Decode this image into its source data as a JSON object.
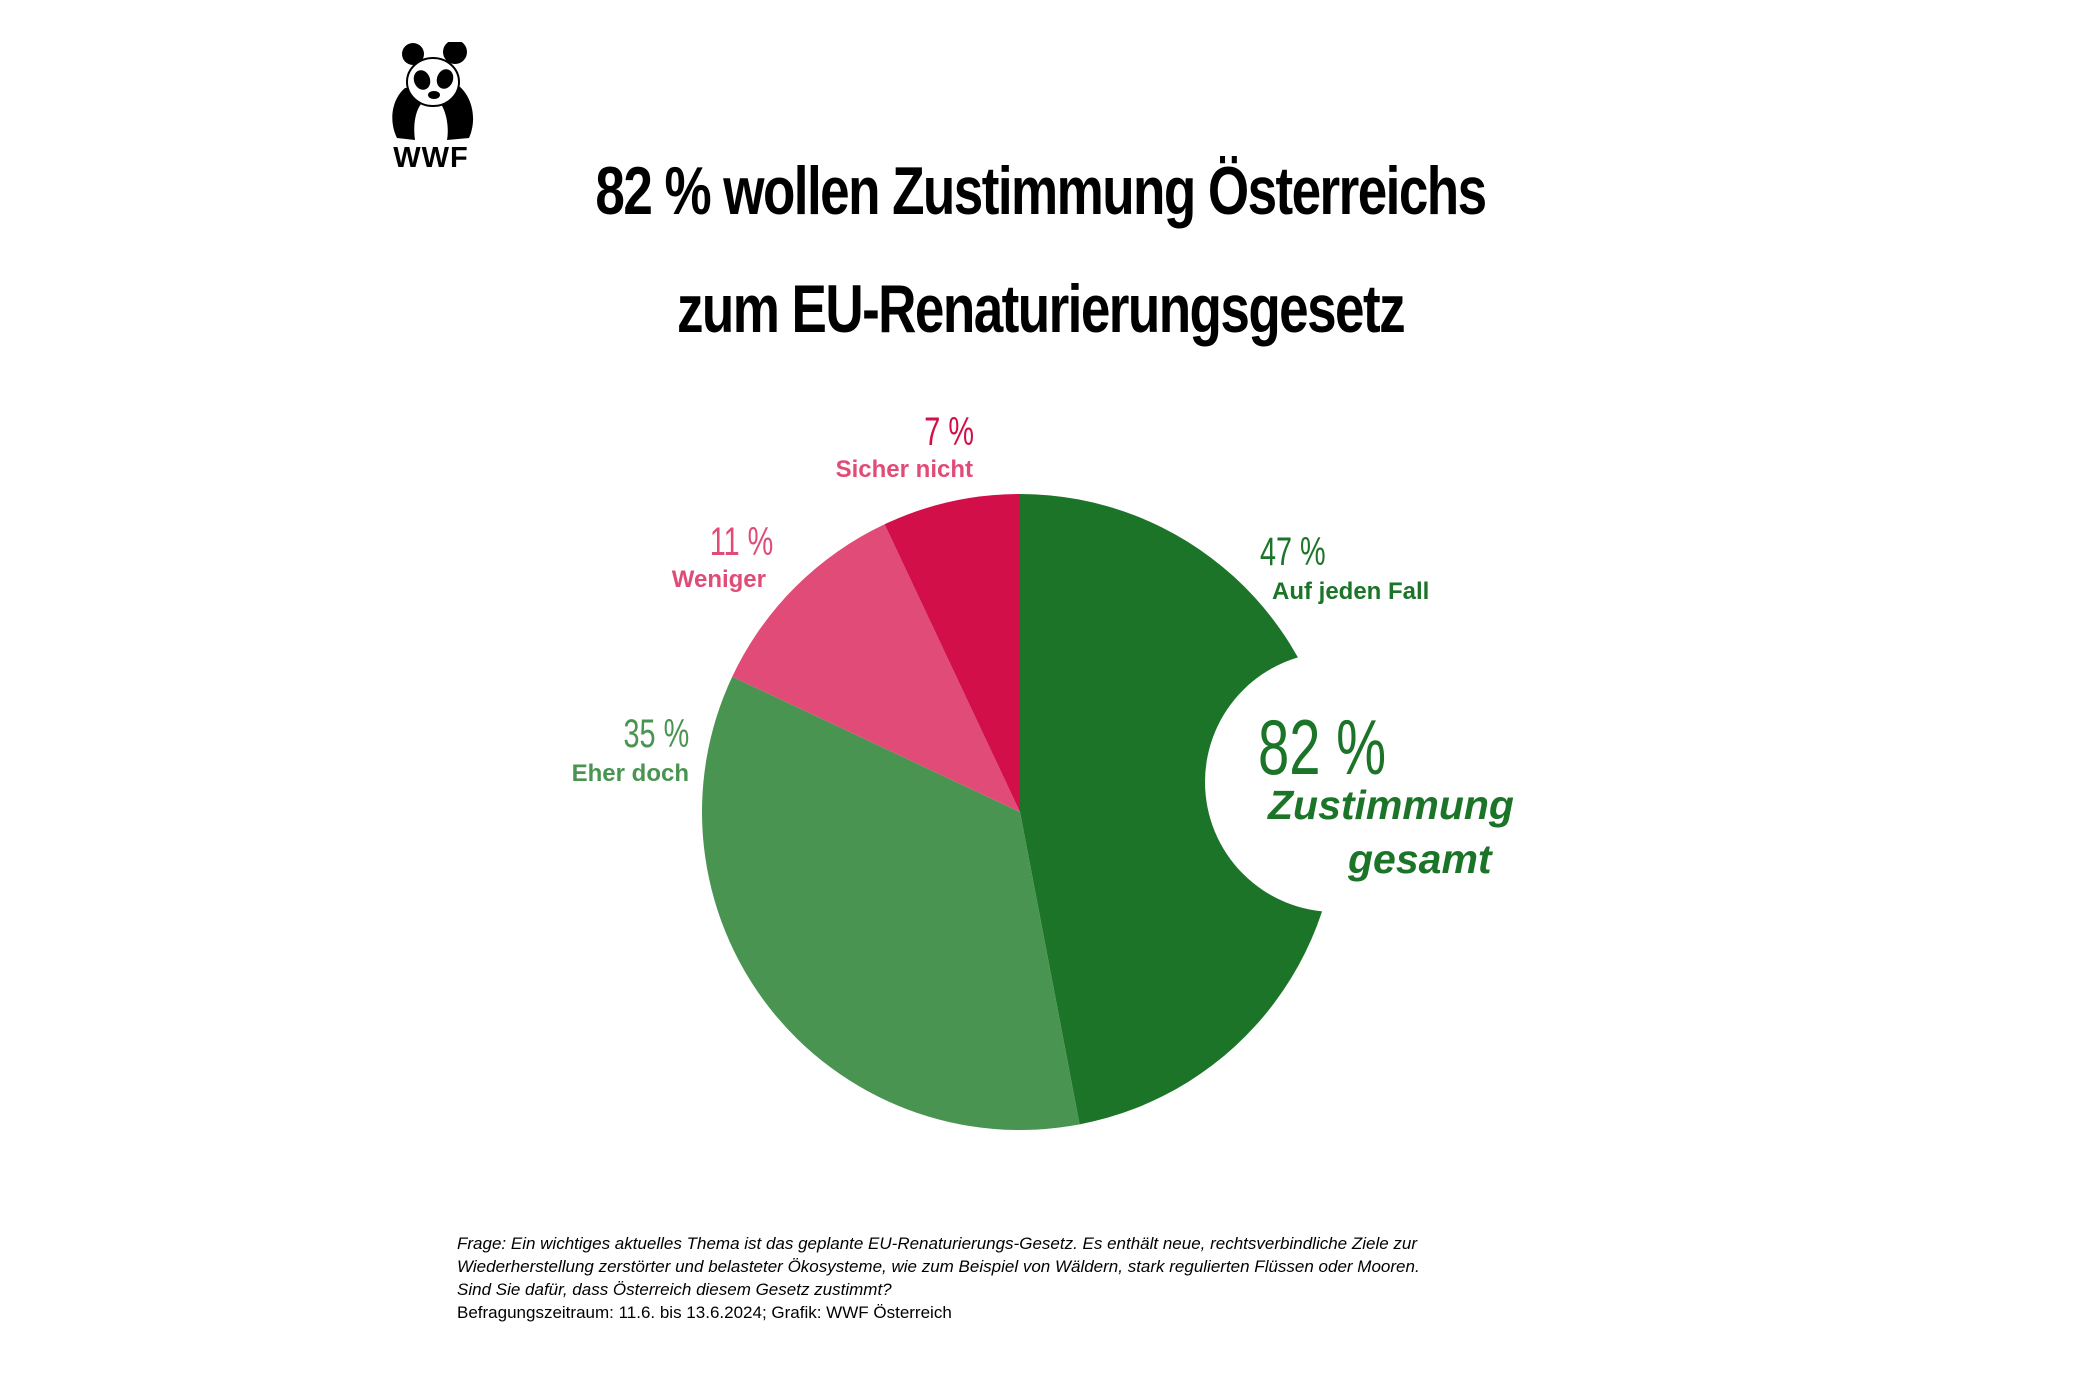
{
  "logo": {
    "text": "WWF",
    "icon": "panda-icon"
  },
  "title": {
    "line1": "82 % wollen Zustimmung Österreichs",
    "line2": "zum EU-Renaturierungsgesetz"
  },
  "chart_data": {
    "type": "pie",
    "title": "82 % wollen Zustimmung Österreichs zum EU-Renaturierungsgesetz",
    "slices": [
      {
        "label": "Auf jeden Fall",
        "value": 47,
        "display": "47 %",
        "color": "#1b7428"
      },
      {
        "label": "Eher doch",
        "value": 35,
        "display": "35 %",
        "color": "#4a9452"
      },
      {
        "label": "Weniger",
        "value": 11,
        "display": "11 %",
        "color": "#e04b77"
      },
      {
        "label": "Sicher nicht",
        "value": 7,
        "display": "7 %",
        "color": "#d20f48"
      }
    ],
    "annotation": {
      "value": "82 %",
      "line1": "Zustimmung",
      "line2": "gesamt",
      "color": "#1b7428"
    }
  },
  "footnote": {
    "line1": "Frage: Ein wichtiges aktuelles Thema ist das geplante EU-Renaturierungs-Gesetz. Es enthält neue, rechtsverbindliche Ziele zur",
    "line2": "Wiederherstellung zerstörter und belasteter Ökosysteme, wie zum Beispiel von Wäldern, stark regulierten Flüssen oder Mooren.",
    "line3": "Sind Sie dafür, dass Österreich diesem Gesetz zustimmt?",
    "line4": "Befragungszeitraum: 11.6. bis 13.6.2024; Grafik: WWF Österreich"
  }
}
